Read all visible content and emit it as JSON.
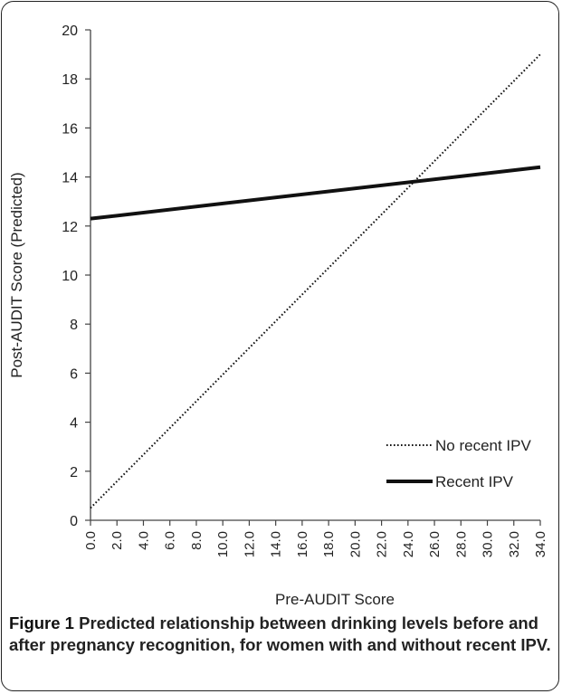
{
  "chart_data": {
    "type": "line",
    "xlabel": "Pre-AUDIT Score",
    "ylabel": "Post-AUDIT Score (Predicted)",
    "xlim": [
      0,
      34
    ],
    "ylim": [
      0,
      20
    ],
    "x_ticks": [
      "0.0",
      "2.0",
      "4.0",
      "6.0",
      "8.0",
      "10.0",
      "12.0",
      "14.0",
      "16.0",
      "18.0",
      "20.0",
      "22.0",
      "24.0",
      "26.0",
      "28.0",
      "30.0",
      "32.0",
      "34.0"
    ],
    "y_ticks": [
      "0",
      "2",
      "4",
      "6",
      "8",
      "10",
      "12",
      "14",
      "16",
      "18",
      "20"
    ],
    "legend_position": "bottom-right",
    "series": [
      {
        "name": "No recent IPV",
        "style": "dotted",
        "x": [
          0,
          34
        ],
        "y": [
          0.5,
          19.0
        ]
      },
      {
        "name": "Recent IPV",
        "style": "solid",
        "x": [
          0,
          34
        ],
        "y": [
          12.3,
          14.4
        ]
      }
    ]
  },
  "caption": {
    "lead": "Figure 1",
    "text": "Predicted relationship between drinking levels before and after pregnancy recognition, for women with and without recent IPV."
  }
}
